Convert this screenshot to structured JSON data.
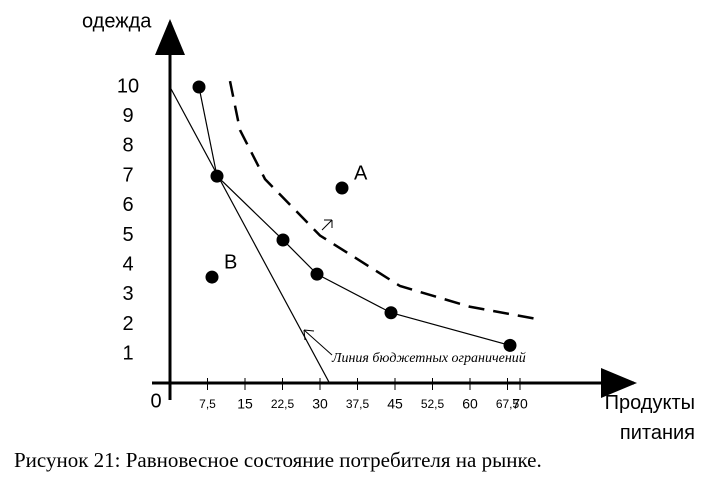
{
  "chart_data": {
    "type": "line",
    "ylabel": "одежда",
    "xlabel": "Продукты питания",
    "origin_label": "0",
    "caption": "Рисунок 21: Равновесное состояние потребителя на рынке.",
    "annotation": "Линия бюджетных ограничений",
    "xlim": [
      0,
      93
    ],
    "ylim": [
      0,
      11.9
    ],
    "xticks": [
      {
        "value": 7.5,
        "label": "7,5"
      },
      15,
      {
        "value": 22.5,
        "label": "22,5"
      },
      30,
      {
        "value": 37.5,
        "label": "37,5"
      },
      45,
      {
        "value": 52.5,
        "label": "52,5"
      },
      60,
      {
        "value": 67.5,
        "label": "67,5"
      },
      70
    ],
    "yticks": [
      1,
      2,
      3,
      4,
      5,
      6,
      7,
      8,
      9,
      10
    ],
    "series": [
      {
        "color": "#000000",
        "style": "solid",
        "markers": true,
        "x": [
          5.8,
          9.4,
          22.6,
          29.4,
          44.2,
          68
        ],
        "values": [
          10,
          7,
          4.85,
          3.7,
          2.4,
          1.3
        ]
      },
      {
        "color": "#000000",
        "style": "dashed",
        "markers": false,
        "x": [
          12,
          14,
          19,
          30,
          46,
          60,
          73
        ],
        "values": [
          10.2,
          8.55,
          6.9,
          5.0,
          3.3,
          2.6,
          2.2
        ]
      },
      {
        "color": "#000000",
        "style": "thin",
        "markers": false,
        "x": [
          0,
          32
        ],
        "values": [
          10,
          0
        ]
      }
    ],
    "points": [
      {
        "label": "A",
        "x": 34.4,
        "y": 6.6
      },
      {
        "label": "B",
        "x": 8.4,
        "y": 3.6
      }
    ]
  }
}
